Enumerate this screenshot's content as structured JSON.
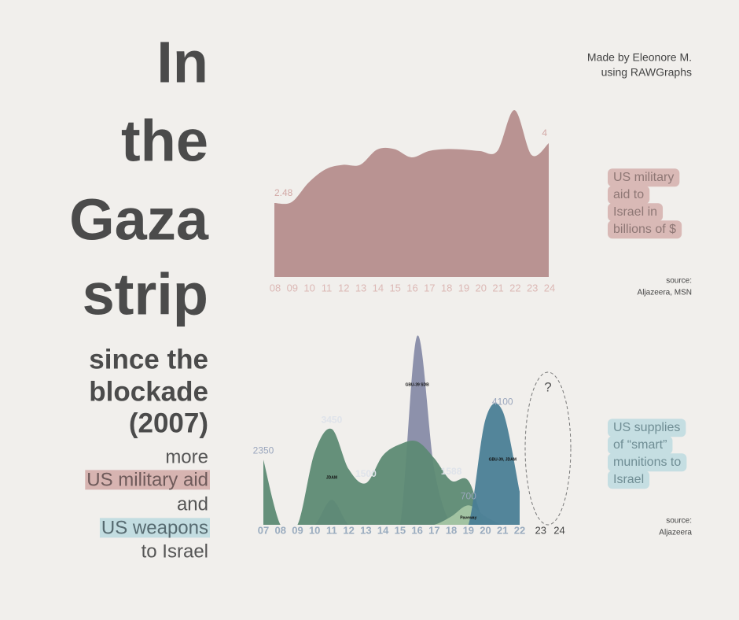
{
  "headline": [
    "In",
    "the",
    "Gaza",
    "strip"
  ],
  "subheadline": [
    "since the",
    "blockade",
    "(2007)"
  ],
  "tagline": [
    "more",
    "US military aid",
    "and",
    "US weapons",
    "to Israel"
  ],
  "credit": [
    "Made by Eleonore M.",
    "using RAWGraphs"
  ],
  "chart_data": [
    {
      "type": "area",
      "categories": [
        "08",
        "09",
        "10",
        "11",
        "12",
        "13",
        "14",
        "15",
        "16",
        "17",
        "18",
        "19",
        "20",
        "21",
        "22",
        "23",
        "24"
      ],
      "values": [
        2.48,
        2.5,
        3.0,
        3.34,
        3.45,
        3.45,
        3.84,
        3.85,
        3.64,
        3.8,
        3.85,
        3.84,
        3.8,
        3.8,
        4.84,
        3.7,
        4
      ],
      "value_labels": [
        "2.48",
        null,
        null,
        null,
        null,
        null,
        null,
        null,
        null,
        null,
        null,
        null,
        null,
        null,
        null,
        null,
        "4"
      ],
      "color": "#b99392",
      "ylim": [
        0.6,
        5.0
      ],
      "caption": [
        "US military",
        "aid to",
        "Israel in",
        "billions of $"
      ],
      "source": [
        "source:",
        "Aljazeera, MSN"
      ]
    },
    {
      "type": "stream",
      "categories": [
        "07",
        "08",
        "09",
        "10",
        "11",
        "12",
        "13",
        "14",
        "15",
        "16",
        "17",
        "18",
        "19",
        "20",
        "21",
        "22",
        "23",
        "24"
      ],
      "series": [
        {
          "name": "GBU-39 SDB",
          "color": "#878ba8",
          "values": [
            0,
            0,
            0,
            0,
            900,
            0,
            0,
            0,
            0,
            6800,
            2000,
            0,
            0,
            0,
            0,
            0,
            null,
            null
          ],
          "value_labels": [
            null,
            null,
            null,
            null,
            null,
            null,
            null,
            null,
            null,
            null,
            null,
            null,
            null,
            null,
            null,
            null,
            null,
            null
          ]
        },
        {
          "name": "JDAM",
          "color": "#5d8a74",
          "values": [
            2350,
            0,
            0,
            2600,
            3450,
            2000,
            1500,
            2500,
            2900,
            3000,
            2400,
            1588,
            1588,
            0,
            0,
            0,
            null,
            null
          ],
          "value_labels": [
            "2350",
            null,
            null,
            null,
            "3450",
            null,
            "1500",
            null,
            null,
            null,
            null,
            "1588",
            null,
            null,
            null,
            null,
            null,
            null
          ]
        },
        {
          "name": "Paveway",
          "color": "#a5c6a4",
          "values": [
            0,
            0,
            0,
            0,
            0,
            0,
            0,
            0,
            0,
            0,
            0,
            300,
            700,
            300,
            0,
            0,
            null,
            null
          ],
          "value_labels": [
            null,
            null,
            null,
            null,
            null,
            null,
            null,
            null,
            null,
            null,
            null,
            null,
            "700",
            null,
            null,
            null,
            null,
            null
          ]
        },
        {
          "name": "GBU-39, JDAM",
          "color": "#4a7e96",
          "values": [
            0,
            0,
            0,
            0,
            0,
            0,
            0,
            0,
            0,
            0,
            0,
            0,
            0,
            3800,
            4100,
            1200,
            null,
            null
          ],
          "value_labels": [
            null,
            null,
            null,
            null,
            null,
            null,
            null,
            null,
            null,
            null,
            null,
            null,
            null,
            null,
            "4100",
            null,
            null,
            null
          ]
        }
      ],
      "ylim": [
        0,
        7000
      ],
      "annotation": "?",
      "caption": [
        "US supplies",
        "of “smart”",
        "munitions to",
        "Israel"
      ],
      "source": [
        "source:",
        "Aljazeera"
      ]
    }
  ]
}
